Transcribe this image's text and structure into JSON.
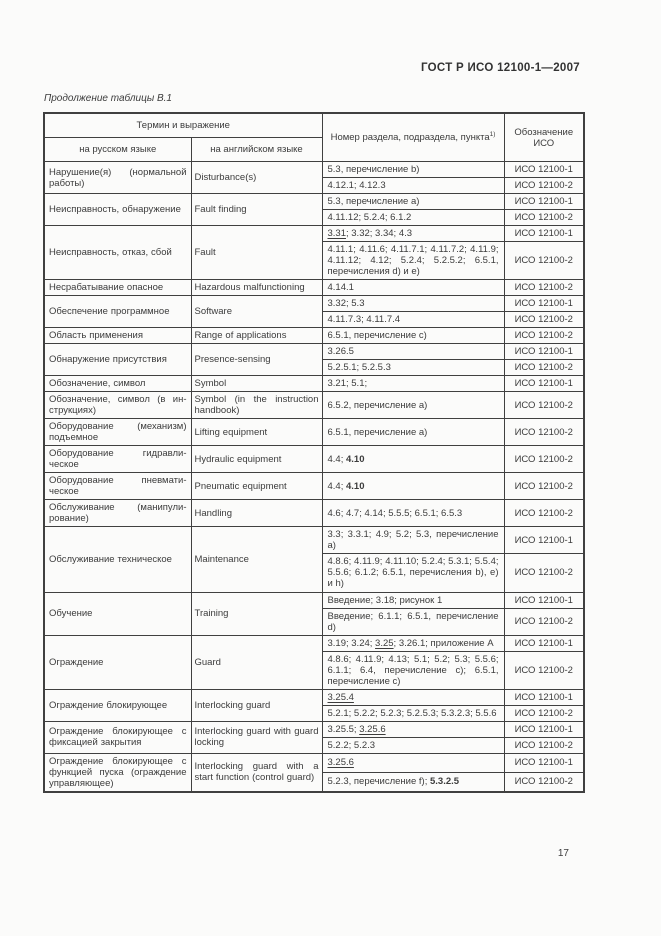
{
  "page": {
    "header": "ГОСТ Р ИСО 12100-1—2007",
    "table_caption": "Продолжение таблицы В.1",
    "page_number": "17"
  },
  "table": {
    "header": {
      "term_group": "Термин и выражение",
      "col_ru": "на русском языке",
      "col_en": "на английском языке",
      "col_refs": "Номер раздела, подраздела, пункта",
      "col_refs_sup": "1)",
      "col_iso": "Обозначение ИСО"
    },
    "rows": [
      {
        "ru": "Нарушение(я) (нормальной работы)",
        "en": "Disturbance(s)",
        "subrows": [
          {
            "refs": [
              {
                "t": "5.3, перечисление b)"
              }
            ],
            "iso": "ИСО 12100-1"
          },
          {
            "refs": [
              {
                "t": "4.12.1; 4.12.3"
              }
            ],
            "iso": "ИСО 12100-2"
          }
        ]
      },
      {
        "ru": "Неисправность, обнаруже­ние",
        "en": "Fault finding",
        "subrows": [
          {
            "refs": [
              {
                "t": "5.3, перечисление a)"
              }
            ],
            "iso": "ИСО 12100-1"
          },
          {
            "refs": [
              {
                "t": "4.11.12; 5.2.4; 6.1.2"
              }
            ],
            "iso": "ИСО 12100-2"
          }
        ]
      },
      {
        "ru": "Неисправность, отказ, сбой",
        "en": "Fault",
        "subrows": [
          {
            "refs": [
              {
                "t": "3.31",
                "u": true
              },
              {
                "t": "; 3.32; 3.34; 4.3"
              }
            ],
            "iso": "ИСО 12100-1"
          },
          {
            "refs": [
              {
                "t": "4.11.1; 4.11.6; 4.11.7.1; 4.11.7.2; 4.11.9; 4.11.12; 4.12; 5.2.4; 5.2.5.2; 6.5.1, перечисления d) и e)"
              }
            ],
            "iso": "ИСО 12100-2"
          }
        ]
      },
      {
        "ru": "Несрабатывание опасное",
        "en": "Hazardous malfunctioning",
        "subrows": [
          {
            "refs": [
              {
                "t": "4.14.1"
              }
            ],
            "iso": "ИСО 12100-2"
          }
        ]
      },
      {
        "ru": "Обеспечение программное",
        "en": "Software",
        "subrows": [
          {
            "refs": [
              {
                "t": "3.32; 5.3"
              }
            ],
            "iso": "ИСО 12100-1"
          },
          {
            "refs": [
              {
                "t": "4.11.7.3; 4.11.7.4"
              }
            ],
            "iso": "ИСО 12100-2"
          }
        ]
      },
      {
        "ru": "Область применения",
        "en": "Range of applications",
        "subrows": [
          {
            "refs": [
              {
                "t": "6.5.1, перечисление c)"
              }
            ],
            "iso": "ИСО 12100-2"
          }
        ]
      },
      {
        "ru": "Обнаружение присутствия",
        "en": "Presence-sensing",
        "subrows": [
          {
            "refs": [
              {
                "t": "3.26.5"
              }
            ],
            "iso": "ИСО 12100-1"
          },
          {
            "refs": [
              {
                "t": "5.2.5.1; 5.2.5.3"
              }
            ],
            "iso": "ИСО 12100-2"
          }
        ]
      },
      {
        "ru": "Обозначение, символ",
        "en": "Symbol",
        "subrows": [
          {
            "refs": [
              {
                "t": "3.21; 5.1;"
              }
            ],
            "iso": "ИСО 12100-1"
          }
        ]
      },
      {
        "ru": "Обозначение, символ (в ин­струкциях)",
        "en": "Symbol (in the instruction handbook)",
        "subrows": [
          {
            "refs": [
              {
                "t": "6.5.2, перечисление a)"
              }
            ],
            "iso": "ИСО 12100-2"
          }
        ]
      },
      {
        "ru": "Оборудование (механизм) подъемное",
        "en": "Lifting equipment",
        "subrows": [
          {
            "refs": [
              {
                "t": "6.5.1, перечисление a)"
              }
            ],
            "iso": "ИСО 12100-2"
          }
        ]
      },
      {
        "ru": "Оборудование гидравли­ческое",
        "en": "Hydraulic equipment",
        "subrows": [
          {
            "refs": [
              {
                "t": "4.4; "
              },
              {
                "t": "4.10",
                "b": true
              }
            ],
            "iso": "ИСО 12100-2"
          }
        ]
      },
      {
        "ru": "Оборудование пневмати­ческое",
        "en": "Pneumatic equipment",
        "subrows": [
          {
            "refs": [
              {
                "t": "4.4; "
              },
              {
                "t": "4.10",
                "b": true
              }
            ],
            "iso": "ИСО 12100-2"
          }
        ]
      },
      {
        "ru": "Обслуживание (манипули­рование)",
        "en": "Handling",
        "subrows": [
          {
            "refs": [
              {
                "t": "4.6; 4.7; 4.14; 5.5.5; 6.5.1; 6.5.3"
              }
            ],
            "iso": "ИСО 12100-2"
          }
        ]
      },
      {
        "ru": "Обслуживание техническое",
        "en": "Maintenance",
        "subrows": [
          {
            "refs": [
              {
                "t": "3.3; 3.3.1; 4.9; 5.2; 5.3, перечисле­ние a)"
              }
            ],
            "iso": "ИСО 12100-1"
          },
          {
            "refs": [
              {
                "t": "4.8.6; 4.11.9; 4.11.10; 5.2.4; 5.3.1; 5.5.4; 5.5.6; 6.1.2; 6.5.1, перечис­ления b), e) и h)"
              }
            ],
            "iso": "ИСО 12100-2"
          }
        ]
      },
      {
        "ru": "Обучение",
        "en": "Training",
        "subrows": [
          {
            "refs": [
              {
                "t": "Введение; 3.18; рисунок 1"
              }
            ],
            "iso": "ИСО 12100-1"
          },
          {
            "refs": [
              {
                "t": "Введение; 6.1.1; 6.5.1, перечисле­ние d)"
              }
            ],
            "iso": "ИСО 12100-2"
          }
        ]
      },
      {
        "ru": "Ограждение",
        "en": "Guard",
        "subrows": [
          {
            "refs": [
              {
                "t": "3.19; 3.24; "
              },
              {
                "t": "3.25",
                "u": true
              },
              {
                "t": "; 3.26.1; приложе­ние А"
              }
            ],
            "iso": "ИСО 12100-1"
          },
          {
            "refs": [
              {
                "t": "4.8.6; 4.11.9; 4.13; 5.1; 5.2; 5.3; 5.5.6; 6.1.1; 6.4, перечисление c); 6.5.1, перечисление c)"
              }
            ],
            "iso": "ИСО 12100-2"
          }
        ]
      },
      {
        "ru": "Ограждение блокирующее",
        "en": "Interlocking guard",
        "subrows": [
          {
            "refs": [
              {
                "t": "3.25.4",
                "u": true
              }
            ],
            "iso": "ИСО 12100-1"
          },
          {
            "refs": [
              {
                "t": "5.2.1; 5.2.2; 5.2.3; 5.2.5.3; 5.3.2.3; 5.5.6"
              }
            ],
            "iso": "ИСО 12100-2"
          }
        ]
      },
      {
        "ru": "Ограждение блокирующее с фиксацией закрытия",
        "en": "Interlocking guard with guard locking",
        "subrows": [
          {
            "refs": [
              {
                "t": "3.25.5; "
              },
              {
                "t": "3.25.6",
                "u": true
              }
            ],
            "iso": "ИСО 12100-1"
          },
          {
            "refs": [
              {
                "t": "5.2.2; 5.2.3"
              }
            ],
            "iso": "ИСО 12100-2"
          }
        ]
      },
      {
        "ru": "Ограждение блокирующее с функцией пуска (ограж­дение управляющее)",
        "en": "Interlocking guard with a start function (control guard)",
        "subrows": [
          {
            "refs": [
              {
                "t": "3.25.6",
                "u": true
              }
            ],
            "iso": "ИСО 12100-1"
          },
          {
            "refs": [
              {
                "t": "5.2.3, перечисление f); "
              },
              {
                "t": "5.3.2.5",
                "b": true
              }
            ],
            "iso": "ИСО 12100-2"
          }
        ]
      }
    ]
  }
}
